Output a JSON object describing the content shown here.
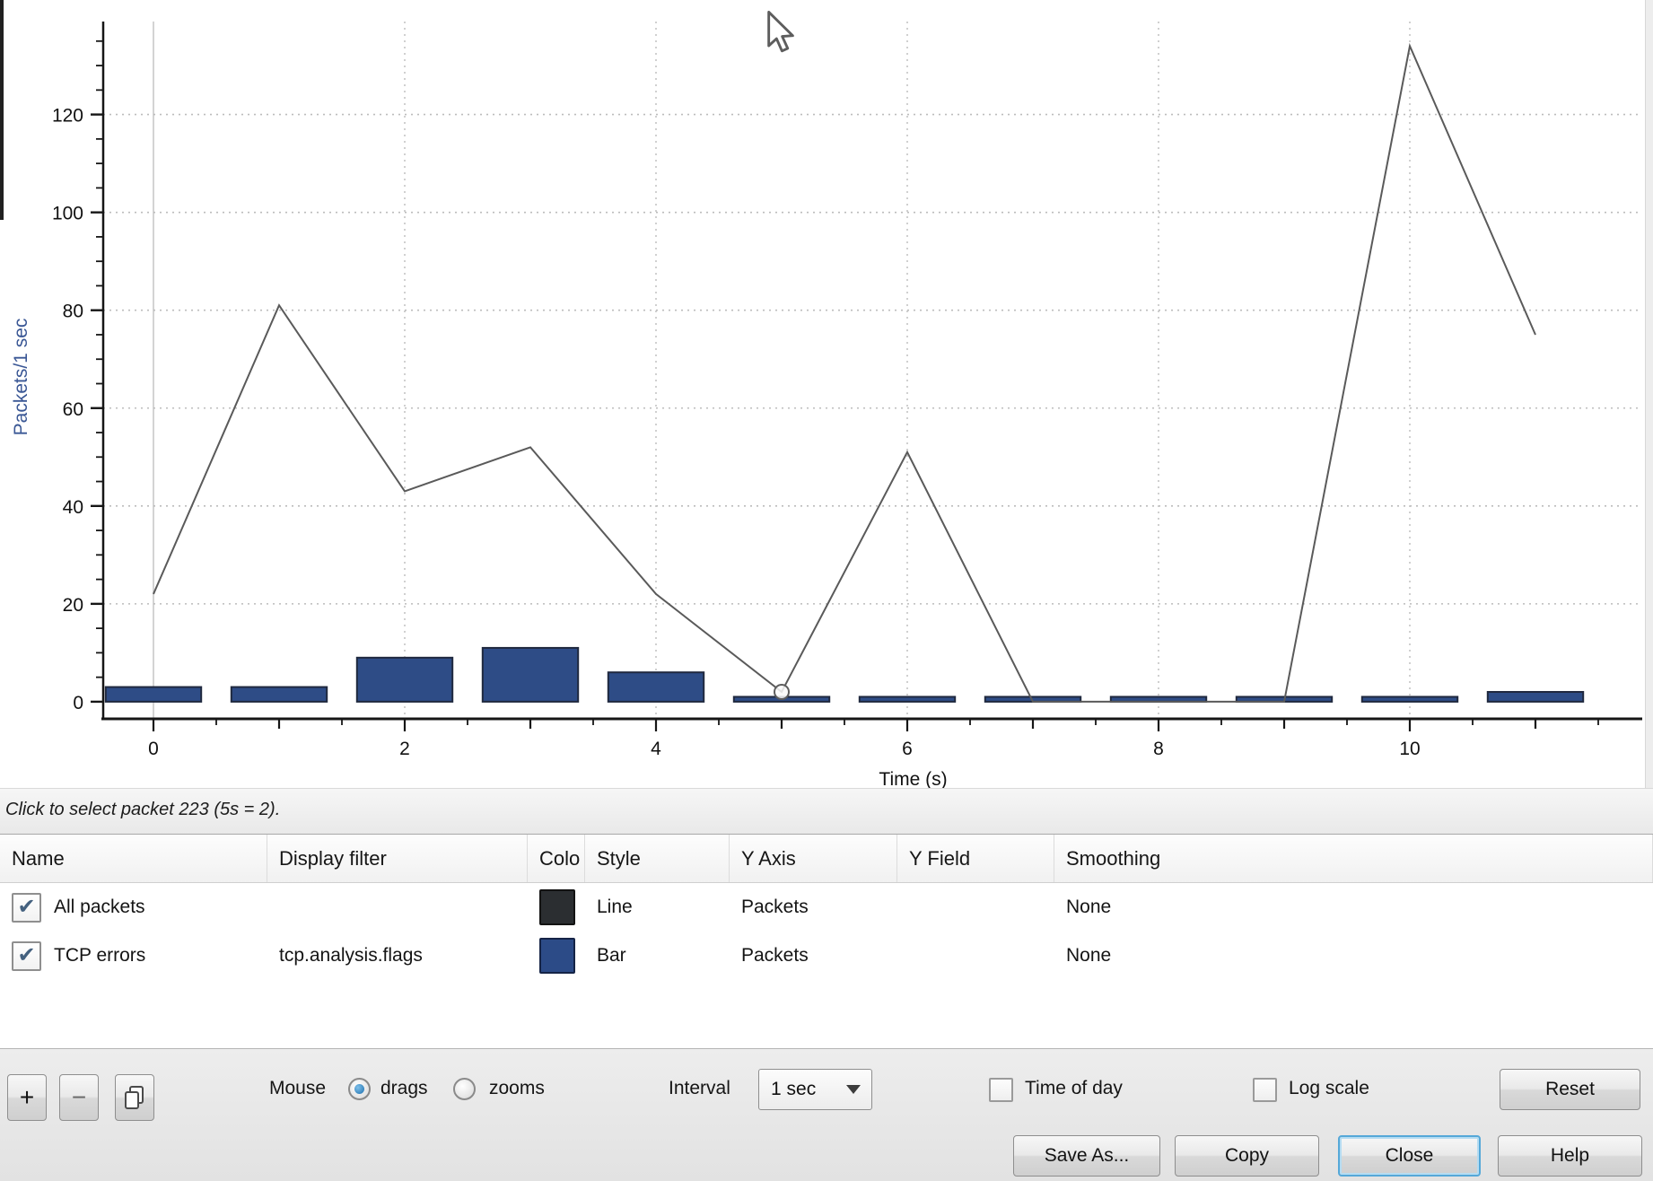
{
  "chart_data": {
    "type": "line",
    "x": [
      0,
      1,
      2,
      3,
      4,
      5,
      6,
      7,
      8,
      9,
      10,
      11
    ],
    "series": [
      {
        "name": "All packets",
        "type": "line",
        "color": "#5a5a5a",
        "values": [
          22,
          81,
          43,
          52,
          22,
          2,
          51,
          0,
          0,
          0,
          134,
          75
        ]
      },
      {
        "name": "TCP errors",
        "type": "bar",
        "color": "#2e4c86",
        "values": [
          3,
          3,
          9,
          11,
          6,
          1,
          1,
          1,
          1,
          1,
          1,
          2
        ]
      }
    ],
    "title": "",
    "xlabel": "Time (s)",
    "ylabel": "Packets/1 sec",
    "xlim": [
      -0.4,
      11.85
    ],
    "ylim": [
      -3.5,
      139
    ],
    "x_tick_labels": [
      0,
      2,
      4,
      6,
      8,
      10
    ],
    "y_tick_labels": [
      0,
      20,
      40,
      60,
      80,
      100,
      120
    ],
    "grid": "dotted",
    "hover_point": {
      "x": 5,
      "y": 2
    }
  },
  "status_bar": {
    "text": "Click to select packet 223 (5s = 2)."
  },
  "table": {
    "columns": {
      "name": "Name",
      "display_filter": "Display filter",
      "color": "Colo",
      "style": "Style",
      "y_axis": "Y Axis",
      "y_field": "Y Field",
      "smoothing": "Smoothing"
    },
    "rows": [
      {
        "enabled": true,
        "check_glyph": "✔",
        "name": "All packets",
        "display_filter": "",
        "color": "#2b2e31",
        "style": "Line",
        "y_axis": "Packets",
        "y_field": "",
        "smoothing": "None"
      },
      {
        "enabled": true,
        "check_glyph": "✔",
        "name": "TCP errors",
        "display_filter": "tcp.analysis.flags",
        "color": "#2c4b87",
        "style": "Bar",
        "y_axis": "Packets",
        "y_field": "",
        "smoothing": "None"
      }
    ]
  },
  "toolbar": {
    "add_label": "+",
    "remove_label": "−",
    "duplicate_icon": "copy-icon",
    "mouse_label": "Mouse",
    "radio_drags": {
      "label": "drags",
      "selected": true
    },
    "radio_zooms": {
      "label": "zooms",
      "selected": false
    },
    "interval_label": "Interval",
    "interval_value": "1 sec",
    "time_of_day": {
      "label": "Time of day",
      "checked": false
    },
    "log_scale": {
      "label": "Log scale",
      "checked": false
    },
    "reset_label": "Reset"
  },
  "footer_buttons": {
    "save_as": "Save As...",
    "copy": "Copy",
    "close": "Close",
    "help": "Help"
  }
}
